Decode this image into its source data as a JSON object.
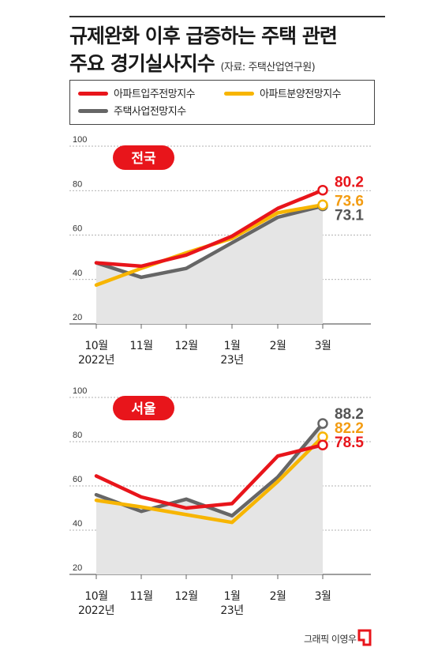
{
  "title_line1": "규제완화 이후 급증하는 주택 관련",
  "title_line2": "주요 경기실사지수",
  "source": "(자료: 주택산업연구원)",
  "legend": [
    {
      "label": "아파트입주전망지수",
      "color": "#e8151b"
    },
    {
      "label": "아파트분양전망지수",
      "color": "#f7b500"
    },
    {
      "label": "주택사업전망지수",
      "color": "#666666"
    }
  ],
  "credit": "그래픽 이영우",
  "chart_data": [
    {
      "type": "line",
      "title": "전국",
      "x": [
        "10월\n2022년",
        "11월",
        "12월",
        "1월\n23년",
        "2월",
        "3월"
      ],
      "y_ticks": [
        20,
        40,
        60,
        80,
        100
      ],
      "ylim": [
        20,
        100
      ],
      "grid": true,
      "series": [
        {
          "name": "아파트입주전망지수",
          "color": "#e8151b",
          "values": [
            47.5,
            46,
            51,
            59.5,
            72,
            80.2
          ],
          "end_label": "80.2"
        },
        {
          "name": "아파트분양전망지수",
          "color": "#f7b500",
          "values": [
            37.5,
            45,
            52,
            58.5,
            70,
            73.6
          ],
          "end_label": "73.6"
        },
        {
          "name": "주택사업전망지수",
          "color": "#666666",
          "values": [
            47.5,
            41,
            45,
            56.5,
            68,
            73.1
          ],
          "end_label": "73.1"
        }
      ]
    },
    {
      "type": "line",
      "title": "서울",
      "x": [
        "10월\n2022년",
        "11월",
        "12월",
        "1월\n23년",
        "2월",
        "3월"
      ],
      "y_ticks": [
        20,
        40,
        60,
        80,
        100
      ],
      "ylim": [
        20,
        100
      ],
      "grid": true,
      "series": [
        {
          "name": "아파트입주전망지수",
          "color": "#e8151b",
          "values": [
            64.5,
            55,
            50,
            52,
            73.5,
            78.5
          ],
          "end_label": "78.5"
        },
        {
          "name": "아파트분양전망지수",
          "color": "#f7b500",
          "values": [
            53.5,
            50.5,
            47,
            43.5,
            62,
            82.2
          ],
          "end_label": "82.2"
        },
        {
          "name": "주택사업전망지수",
          "color": "#666666",
          "values": [
            56,
            48.5,
            54,
            46.5,
            64,
            88.2
          ],
          "end_label": "88.2"
        }
      ]
    }
  ]
}
